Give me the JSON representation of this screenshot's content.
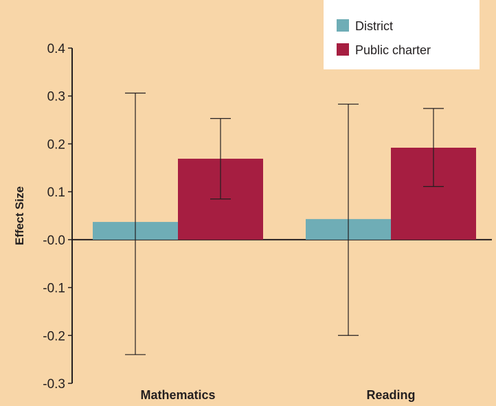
{
  "chart_data": {
    "type": "bar",
    "title": "",
    "xlabel": "",
    "ylabel": "Effect Size",
    "ylim": [
      -0.3,
      0.4
    ],
    "yticks": [
      "0.4",
      "0.3",
      "0.2",
      "0.1",
      "-0.0",
      "-0.1",
      "-0.2",
      "-0.3"
    ],
    "ytick_values": [
      0.4,
      0.3,
      0.2,
      0.1,
      0.0,
      -0.1,
      -0.2,
      -0.3
    ],
    "categories": [
      "Mathematics",
      "Reading"
    ],
    "series": [
      {
        "name": "District",
        "color": "#6fadb6",
        "values": [
          0.037,
          0.043
        ],
        "error_low": [
          -0.24,
          -0.2
        ],
        "error_high": [
          0.306,
          0.283
        ]
      },
      {
        "name": "Public charter",
        "color": "#a61e41",
        "values": [
          0.169,
          0.192
        ],
        "error_low": [
          0.085,
          0.111
        ],
        "error_high": [
          0.253,
          0.274
        ]
      }
    ],
    "legend_position": "top-right",
    "grid": false
  }
}
